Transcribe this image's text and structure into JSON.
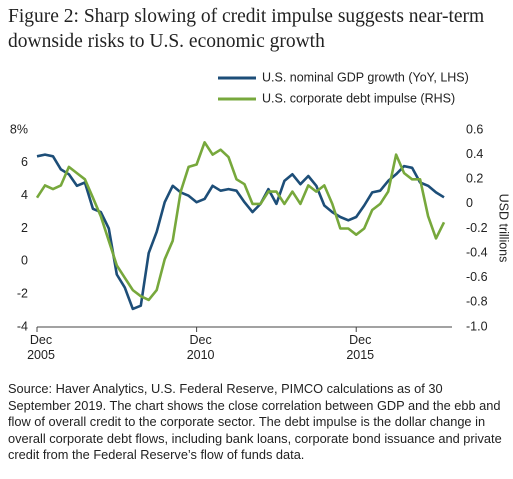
{
  "chart_data": {
    "type": "line",
    "title": "Figure 2: Sharp slowing of credit impulse suggests near-term downside risks to U.S. economic growth",
    "y2_label": "USD trillions",
    "source": "Source: Haver Analytics, U.S. Federal Reserve, PIMCO calculations as of 30 September 2019. The chart shows the close correlation between GDP and the ebb and flow of overall credit to the corporate sector. The debt impulse is the dollar change in overall corporate debt flows, including bank loans, corporate bond issuance and private credit from the Federal Reserve’s flow of funds data.",
    "x": [
      2005.92,
      2006.17,
      2006.42,
      2006.67,
      2006.92,
      2007.17,
      2007.42,
      2007.67,
      2007.92,
      2008.17,
      2008.42,
      2008.67,
      2008.92,
      2009.17,
      2009.42,
      2009.67,
      2009.92,
      2010.17,
      2010.42,
      2010.67,
      2010.92,
      2011.17,
      2011.42,
      2011.67,
      2011.92,
      2012.17,
      2012.42,
      2012.67,
      2012.92,
      2013.17,
      2013.42,
      2013.67,
      2013.92,
      2014.17,
      2014.42,
      2014.67,
      2014.92,
      2015.17,
      2015.42,
      2015.67,
      2015.92,
      2016.17,
      2016.42,
      2016.67,
      2016.92,
      2017.17,
      2017.42,
      2017.67,
      2017.92,
      2018.17,
      2018.42,
      2018.67
    ],
    "series": [
      {
        "name": "U.S. nominal GDP growth (YoY, LHS)",
        "color": "#1d4e78",
        "axis": "y",
        "values": [
          6.4,
          6.5,
          6.4,
          5.6,
          5.3,
          4.6,
          4.8,
          3.2,
          3.0,
          2.0,
          -0.8,
          -1.6,
          -2.9,
          -2.7,
          0.5,
          1.8,
          3.6,
          4.6,
          4.2,
          4.0,
          3.6,
          3.8,
          4.6,
          4.3,
          4.4,
          4.3,
          3.6,
          3.0,
          3.5,
          4.4,
          3.5,
          4.9,
          5.3,
          4.7,
          5.2,
          4.6,
          3.4,
          3.0,
          2.7,
          2.5,
          2.7,
          3.4,
          4.2,
          4.3,
          4.9,
          5.3,
          5.8,
          5.7,
          4.8,
          4.6,
          4.2,
          3.9
        ]
      },
      {
        "name": "U.S. corporate debt impulse (RHS)",
        "color": "#77a83c",
        "axis": "y2",
        "values": [
          0.05,
          0.15,
          0.12,
          0.15,
          0.3,
          0.25,
          0.2,
          0.05,
          -0.1,
          -0.3,
          -0.5,
          -0.6,
          -0.7,
          -0.75,
          -0.78,
          -0.7,
          -0.45,
          -0.3,
          0.1,
          0.3,
          0.32,
          0.5,
          0.4,
          0.44,
          0.38,
          0.2,
          0.16,
          0.0,
          0.0,
          0.1,
          0.1,
          0.0,
          0.1,
          0.0,
          0.15,
          0.1,
          0.15,
          0.0,
          -0.2,
          -0.2,
          -0.25,
          -0.2,
          -0.05,
          0.0,
          0.1,
          0.4,
          0.25,
          0.2,
          0.2,
          -0.1,
          -0.28,
          -0.15
        ]
      }
    ],
    "xlim": [
      2005.92,
      2018.92
    ],
    "xticks": [
      {
        "value": 2005.92,
        "label": "Dec 2005"
      },
      {
        "value": 2010.92,
        "label": "Dec 2010"
      },
      {
        "value": 2015.92,
        "label": "Dec 2015"
      }
    ],
    "ylim": [
      -4,
      8
    ],
    "yticks": [
      {
        "value": 8,
        "label": "8%"
      },
      6,
      4,
      2,
      0,
      -2,
      -4
    ],
    "y2lim": [
      -1.0,
      0.6
    ],
    "y2ticks": [
      0.6,
      0.4,
      0.2,
      0,
      -0.2,
      -0.4,
      -0.6,
      -0.8,
      {
        "value": -1.0,
        "label": "-1.0"
      }
    ],
    "legend": "top-right"
  }
}
